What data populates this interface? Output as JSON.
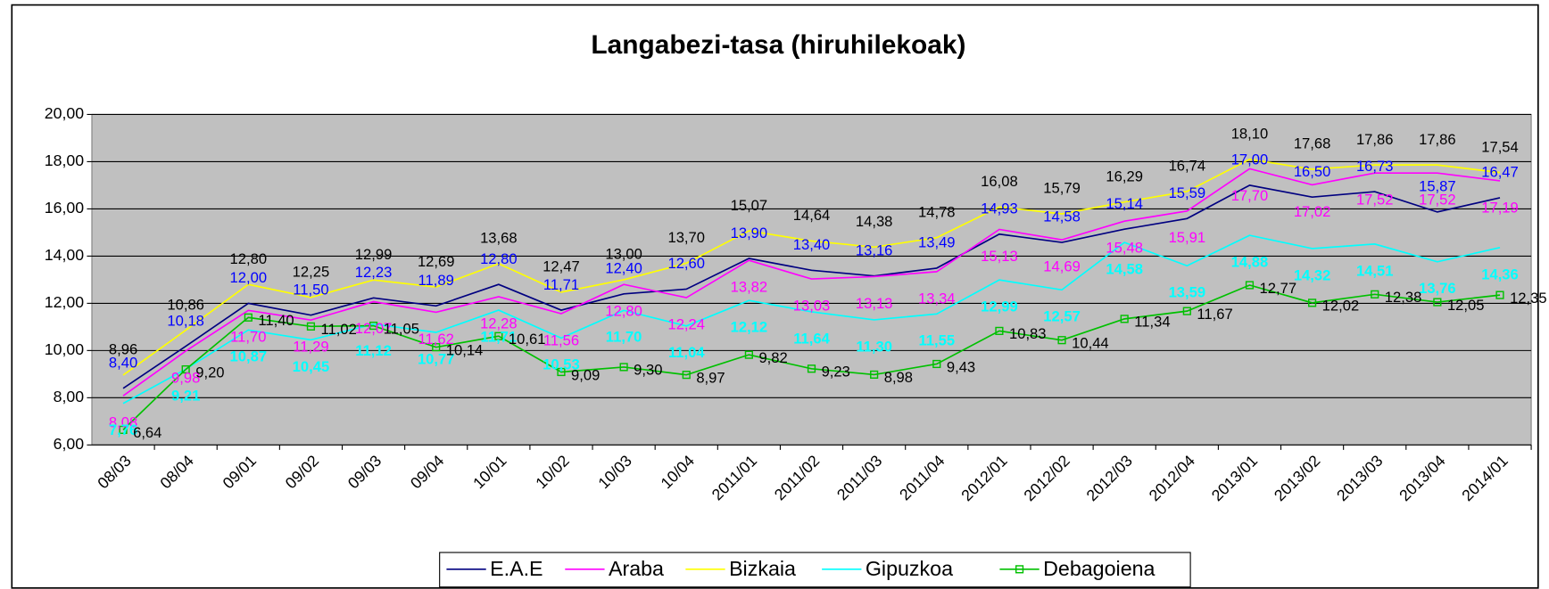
{
  "chart_data": {
    "type": "line",
    "title": "Langabezi-tasa (hiruhilekoak)",
    "categories": [
      "08/03",
      "08/04",
      "09/01",
      "09/02",
      "09/03",
      "09/04",
      "10/01",
      "10/02",
      "10/03",
      "10/04",
      "2011/01",
      "2011/02",
      "2011/03",
      "2011/04",
      "2012/01",
      "2012/02",
      "2012/03",
      "2012/04",
      "2013/01",
      "2013/02",
      "2013/03",
      "2013/04",
      "2014/01"
    ],
    "ylim": [
      6,
      20
    ],
    "yticks": [
      {
        "value": 6,
        "label": "6,00"
      },
      {
        "value": 8,
        "label": "8,00"
      },
      {
        "value": 10,
        "label": "10,00"
      },
      {
        "value": 12,
        "label": "12,00"
      },
      {
        "value": 14,
        "label": "14,00"
      },
      {
        "value": 16,
        "label": "16,00"
      },
      {
        "value": 18,
        "label": "18,00"
      },
      {
        "value": 20,
        "label": "20,00"
      }
    ],
    "grid": true,
    "legend": "bottom",
    "series": [
      {
        "name": "E.A.E",
        "color": "#000080",
        "label_color": "#0000ff",
        "values": [
          8.4,
          10.18,
          12.0,
          11.5,
          12.23,
          11.89,
          12.8,
          11.71,
          12.4,
          12.6,
          13.9,
          13.4,
          13.16,
          13.49,
          14.93,
          14.58,
          15.14,
          15.59,
          17.0,
          16.5,
          16.73,
          15.87,
          16.47
        ],
        "value_labels": [
          "8,40",
          "10,18",
          "12,00",
          "11,50",
          "12,23",
          "11,89",
          "12,80",
          "11,71",
          "12,40",
          "12,60",
          "13,90",
          "13,40",
          "13,16",
          "13,49",
          "14,93",
          "14,58",
          "15,14",
          "15,59",
          "17,00",
          "16,50",
          "16,73",
          "15,87",
          "16,47"
        ]
      },
      {
        "name": "Araba",
        "color": "#ff00ff",
        "label_color": "#ff00ff",
        "values": [
          8.08,
          9.98,
          11.7,
          11.29,
          12.07,
          11.62,
          12.28,
          11.56,
          12.8,
          12.24,
          13.82,
          13.03,
          13.13,
          13.34,
          15.13,
          14.69,
          15.48,
          15.91,
          17.7,
          17.02,
          17.52,
          17.52,
          17.19
        ],
        "value_labels": [
          "8,08",
          "9,98",
          "11,70",
          "11,29",
          "12,07",
          "11,62",
          "12,28",
          "11,56",
          "12,80",
          "12,24",
          "13,82",
          "13,03",
          "13,13",
          "13,34",
          "15,13",
          "14,69",
          "15,48",
          "15,91",
          "17,70",
          "17,02",
          "17,52",
          "17,52",
          "17,19"
        ]
      },
      {
        "name": "Bizkaia",
        "color": "#ffff00",
        "label_color": "#000000",
        "values": [
          8.96,
          10.86,
          12.8,
          12.25,
          12.99,
          12.69,
          13.68,
          12.47,
          13.0,
          13.7,
          15.07,
          14.64,
          14.38,
          14.78,
          16.08,
          15.79,
          16.29,
          16.74,
          18.1,
          17.68,
          17.86,
          17.86,
          17.54
        ],
        "value_labels": [
          "8,96",
          "10,86",
          "12,80",
          "12,25",
          "12,99",
          "12,69",
          "13,68",
          "12,47",
          "13,00",
          "13,70",
          "15,07",
          "14,64",
          "14,38",
          "14,78",
          "16,08",
          "15,79",
          "16,29",
          "16,74",
          "18,10",
          "17,68",
          "17,86",
          "17,86",
          "17,54"
        ]
      },
      {
        "name": "Gipuzkoa",
        "color": "#00ffff",
        "label_color": "#00ffff",
        "values": [
          7.76,
          9.21,
          10.87,
          10.45,
          11.12,
          10.77,
          11.71,
          10.53,
          11.7,
          11.04,
          12.12,
          11.64,
          11.3,
          11.55,
          12.99,
          12.57,
          14.58,
          13.59,
          14.88,
          14.32,
          14.51,
          13.76,
          14.36
        ],
        "value_labels": [
          "7,76",
          "9,21",
          "10,87",
          "10,45",
          "11,12",
          "10,77",
          "11,71",
          "10,53",
          "11,70",
          "11,04",
          "12,12",
          "11,64",
          "11,30",
          "11,55",
          "12,99",
          "12,57",
          "14,58",
          "13,59",
          "14,88",
          "14,32",
          "14,51",
          "13,76",
          "14,36"
        ]
      },
      {
        "name": "Debagoiena",
        "color": "#00c000",
        "label_color": "#000000",
        "marker": "square",
        "values": [
          6.64,
          9.2,
          11.4,
          11.02,
          11.05,
          10.14,
          10.61,
          9.09,
          9.3,
          8.97,
          9.82,
          9.23,
          8.98,
          9.43,
          10.83,
          10.44,
          11.34,
          11.67,
          12.77,
          12.02,
          12.38,
          12.05,
          12.35
        ],
        "value_labels": [
          "6,64",
          "9,20",
          "11,40",
          "11,02",
          "11,05",
          "10,14",
          "10,61",
          "9,09",
          "9,30",
          "8,97",
          "9,82",
          "9,23",
          "8,98",
          "9,43",
          "10,83",
          "10,44",
          "11,34",
          "11,67",
          "12,77",
          "12,02",
          "12,38",
          "12,05",
          "12,35"
        ]
      }
    ]
  }
}
